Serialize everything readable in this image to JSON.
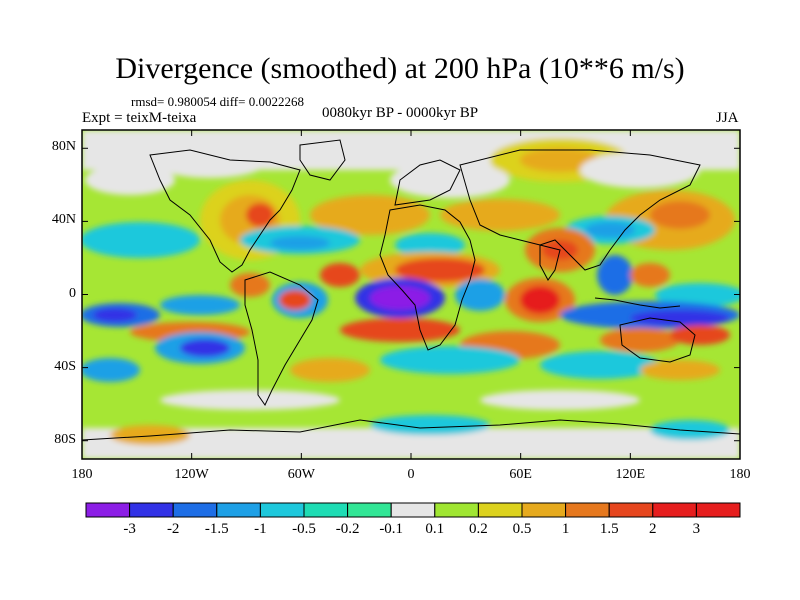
{
  "title": "Divergence (smoothed) at 200 hPa (10**6 m/s)",
  "stats": "rmsd= 0.980054  diff= 0.0022268",
  "left_label": "Expt = teixM-teixa",
  "center_label": "0080kyr BP - 0000kyr BP",
  "right_label": "JJA",
  "map": {
    "projection": "cylindrical equidistant",
    "lon_range": [
      -180,
      180
    ],
    "lat_range": [
      -90,
      90
    ],
    "lat_ticks": [
      {
        "v": 80,
        "label": "80N"
      },
      {
        "v": 40,
        "label": "40N"
      },
      {
        "v": 0,
        "label": "0"
      },
      {
        "v": -40,
        "label": "40S"
      },
      {
        "v": -80,
        "label": "80S"
      }
    ],
    "lon_ticks": [
      {
        "v": -180,
        "label": "180"
      },
      {
        "v": -120,
        "label": "120W"
      },
      {
        "v": -60,
        "label": "60W"
      },
      {
        "v": 0,
        "label": "0"
      },
      {
        "v": 60,
        "label": "60E"
      },
      {
        "v": 120,
        "label": "120E"
      },
      {
        "v": 180,
        "label": "180"
      }
    ]
  },
  "colorbar": {
    "labels": [
      "-3",
      "-2",
      "-1.5",
      "-1",
      "-0.5",
      "-0.2",
      "-0.1",
      "0.1",
      "0.2",
      "0.5",
      "1",
      "1.5",
      "2",
      "3"
    ],
    "colors": [
      "#8c1ee6",
      "#3232e6",
      "#1e6ee6",
      "#1ea0e6",
      "#1ec8dc",
      "#1edcb4",
      "#32e696",
      "#e6e6e6",
      "#a0e632",
      "#dcd21e",
      "#e6aa1e",
      "#e6781e",
      "#e6461e",
      "#e61e1e"
    ]
  }
}
